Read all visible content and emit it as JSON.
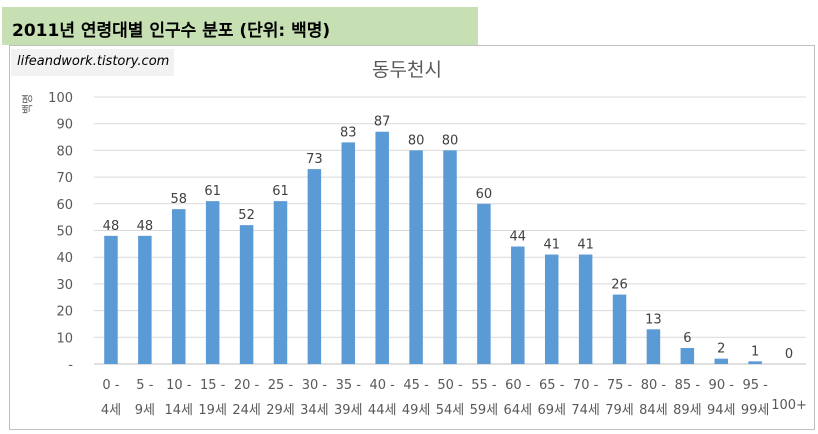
{
  "header": {
    "title": "2011년 연령대별 인구수 분포 (단위: 백명)"
  },
  "watermark": "lifeandwork.tistory.com",
  "colors": {
    "bar": "#5b9bd5",
    "header_bg": "#c6e0b4",
    "grid": "#d9d9d9"
  },
  "chart_data": {
    "type": "bar",
    "title": "동두천시",
    "ylabel": "백명",
    "xlabel": "",
    "ylim": [
      0,
      100
    ],
    "yticks": [
      "-",
      "10",
      "20",
      "30",
      "40",
      "50",
      "60",
      "70",
      "80",
      "90",
      "100"
    ],
    "grid": true,
    "legend": "none",
    "categories": [
      [
        "0 -",
        "4세"
      ],
      [
        "5 -",
        "9세"
      ],
      [
        "10 -",
        "14세"
      ],
      [
        "15 -",
        "19세"
      ],
      [
        "20 -",
        "24세"
      ],
      [
        "25 -",
        "29세"
      ],
      [
        "30 -",
        "34세"
      ],
      [
        "35 -",
        "39세"
      ],
      [
        "40 -",
        "44세"
      ],
      [
        "45 -",
        "49세"
      ],
      [
        "50 -",
        "54세"
      ],
      [
        "55 -",
        "59세"
      ],
      [
        "60 -",
        "64세"
      ],
      [
        "65 -",
        "69세"
      ],
      [
        "70 -",
        "74세"
      ],
      [
        "75 -",
        "79세"
      ],
      [
        "80 -",
        "84세"
      ],
      [
        "85 -",
        "89세"
      ],
      [
        "90 -",
        "94세"
      ],
      [
        "95 -",
        "99세"
      ],
      [
        "",
        "100+"
      ]
    ],
    "values": [
      48,
      48,
      58,
      61,
      52,
      61,
      73,
      83,
      87,
      80,
      80,
      60,
      44,
      41,
      41,
      26,
      13,
      6,
      2,
      1,
      0
    ],
    "labels": [
      "48",
      "48",
      "58",
      "61",
      "52",
      "61",
      "73",
      "83",
      "87",
      "80",
      "80",
      "60",
      "44",
      "41",
      "41",
      "26",
      "13",
      "6",
      "2",
      "1",
      "0"
    ]
  }
}
